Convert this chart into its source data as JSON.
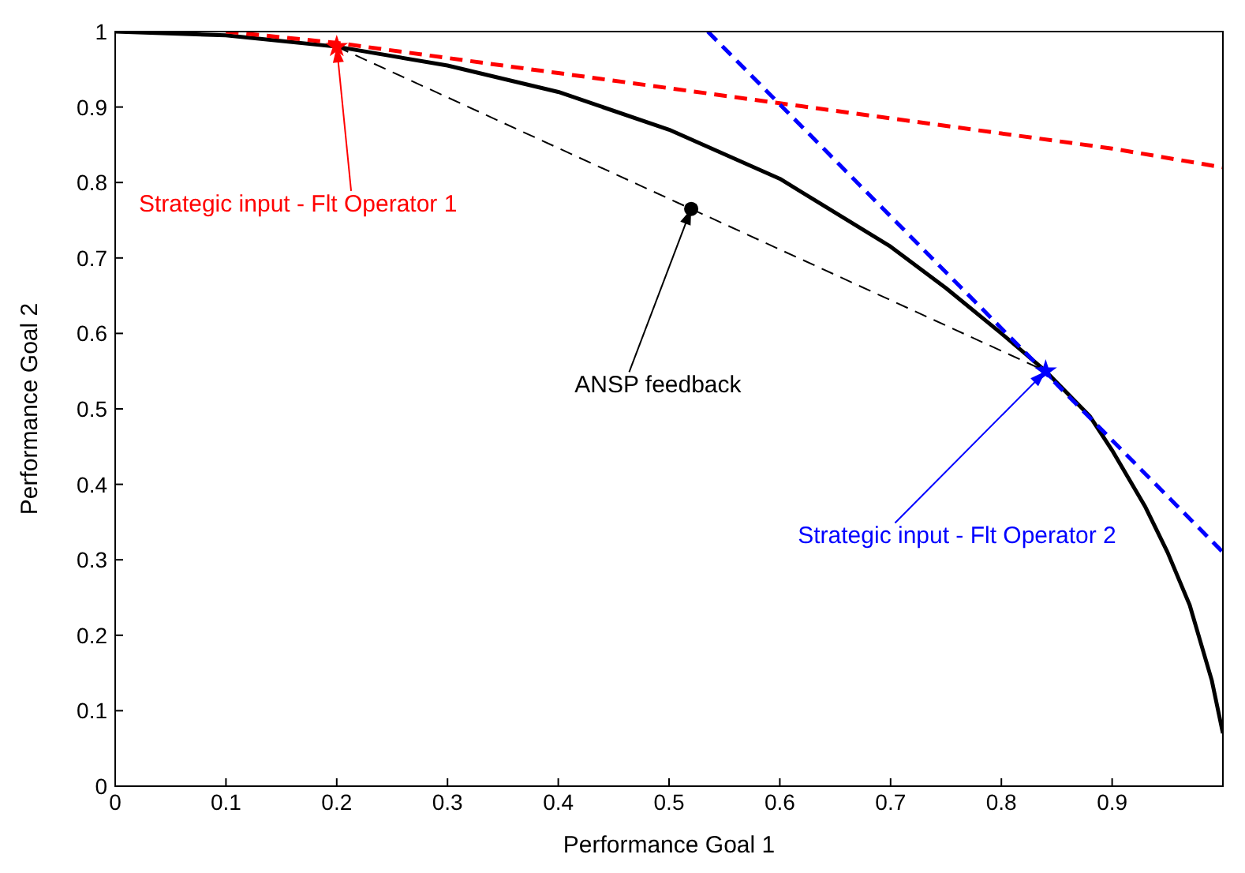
{
  "chart_data": {
    "type": "line",
    "xlabel": "Performance Goal 1",
    "ylabel": "Performance Goal 2",
    "xlim": [
      0,
      1
    ],
    "xticks": [
      0,
      0.1,
      0.2,
      0.3,
      0.4,
      0.5,
      0.6,
      0.7,
      0.8,
      0.9
    ],
    "ylim": [
      0,
      1
    ],
    "yticks": [
      0,
      0.1,
      0.2,
      0.3,
      0.4,
      0.5,
      0.6,
      0.7,
      0.8,
      0.9,
      1
    ],
    "grid": false,
    "series": [
      {
        "color": "#000000",
        "line_style": "solid",
        "x": [
          0,
          0.1,
          0.2,
          0.3,
          0.4,
          0.5,
          0.6,
          0.7,
          0.75,
          0.8,
          0.84,
          0.88,
          0.9,
          0.93,
          0.95,
          0.97,
          0.98,
          0.99,
          1.0
        ],
        "values": [
          1,
          0.995,
          0.98,
          0.955,
          0.92,
          0.87,
          0.805,
          0.715,
          0.66,
          0.6,
          0.55,
          0.49,
          0.445,
          0.37,
          0.31,
          0.24,
          0.19,
          0.14,
          0.07
        ]
      },
      {
        "color": "#ff0000",
        "line_style": "dashed",
        "x": [
          0.1,
          0.2,
          0.3,
          0.4,
          0.5,
          0.6,
          0.7,
          0.8,
          0.9,
          1.0
        ],
        "values": [
          1,
          0.985,
          0.965,
          0.945,
          0.925,
          0.905,
          0.885,
          0.865,
          0.845,
          0.82
        ]
      },
      {
        "color": "#0000ff",
        "line_style": "dashed",
        "x": [
          0.535,
          1.0
        ],
        "values": [
          1,
          0.31
        ]
      },
      {
        "color": "#000000",
        "line_style": "dashed",
        "x": [
          0.2,
          0.84
        ],
        "values": [
          0.98,
          0.55
        ]
      },
      {
        "type": "scatter",
        "marker": "star",
        "color": "#ff0000",
        "x": [
          0.2
        ],
        "values": [
          0.98
        ]
      },
      {
        "type": "scatter",
        "marker": "circle",
        "color": "#000000",
        "x": [
          0.52
        ],
        "values": [
          0.765
        ]
      },
      {
        "type": "scatter",
        "marker": "star",
        "color": "#0000ff",
        "x": [
          0.84
        ],
        "values": [
          0.55
        ]
      }
    ],
    "annotations": [
      {
        "text": "Strategic input - Flt Operator 1",
        "x": 0.2,
        "y": 0.98
      },
      {
        "text": "ANSP feedback",
        "x": 0.52,
        "y": 0.765
      },
      {
        "text": "Strategic input - Flt Operator 2",
        "x": 0.84,
        "y": 0.55
      }
    ]
  }
}
